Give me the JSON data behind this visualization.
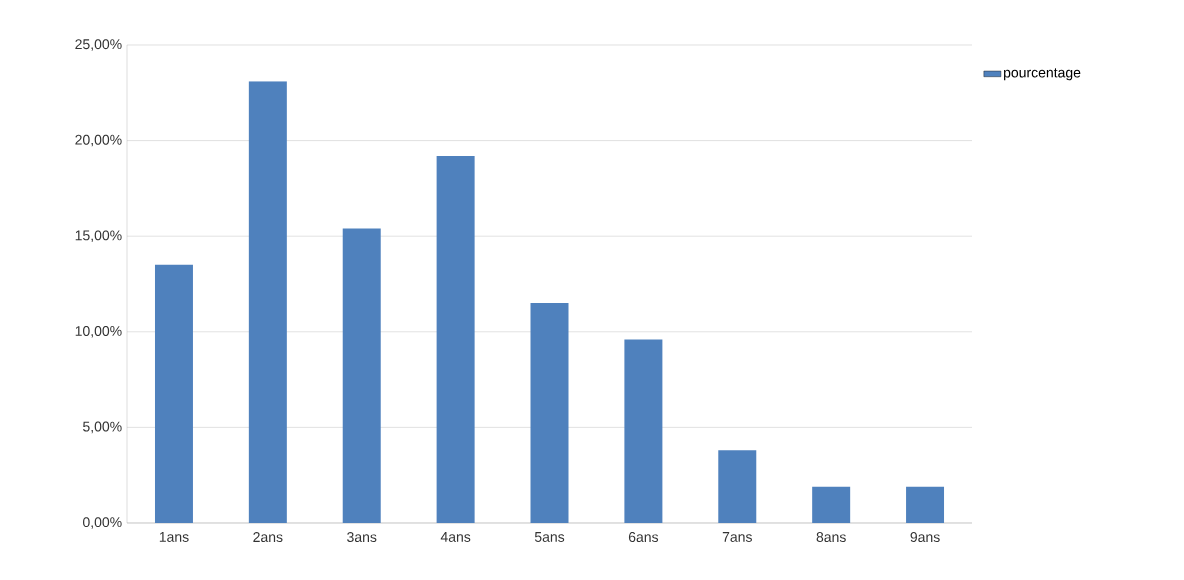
{
  "chart_data": {
    "type": "bar",
    "categories": [
      "1ans",
      "2ans",
      "3ans",
      "4ans",
      "5ans",
      "6ans",
      "7ans",
      "8ans",
      "9ans"
    ],
    "series": [
      {
        "name": "pourcentage",
        "color": "#4f81bd",
        "values": [
          13.5,
          23.1,
          15.4,
          19.2,
          11.5,
          9.6,
          3.8,
          1.9,
          1.9
        ]
      }
    ],
    "ylim": [
      0,
      25
    ],
    "yticks": [
      {
        "value": 0,
        "label": "0,00%"
      },
      {
        "value": 5,
        "label": "5,00%"
      },
      {
        "value": 10,
        "label": "10,00%"
      },
      {
        "value": 15,
        "label": "15,00%"
      },
      {
        "value": 20,
        "label": "20,00%"
      },
      {
        "value": 25,
        "label": "25,00%"
      }
    ],
    "grid": "y",
    "legend": "top right"
  }
}
